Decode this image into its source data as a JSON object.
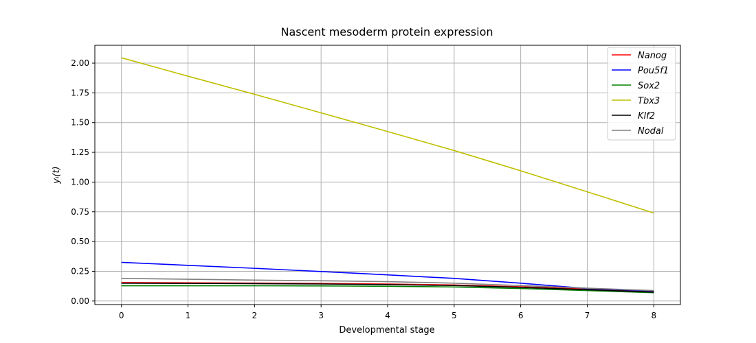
{
  "chart_data": {
    "type": "line",
    "title": "Nascent mesoderm protein expression",
    "xlabel": "Developmental stage",
    "ylabel": "yᵢ(t)",
    "xlim": [
      -0.4,
      8.4
    ],
    "ylim": [
      -0.03,
      2.15
    ],
    "xticks": [
      0,
      1,
      2,
      3,
      4,
      5,
      6,
      7,
      8
    ],
    "yticks": [
      0.0,
      0.25,
      0.5,
      0.75,
      1.0,
      1.25,
      1.5,
      1.75,
      2.0
    ],
    "ytick_labels": [
      "0.00",
      "0.25",
      "0.50",
      "0.75",
      "1.00",
      "1.25",
      "1.50",
      "1.75",
      "2.00"
    ],
    "grid": true,
    "legend_position": "top-right",
    "x": [
      0,
      1,
      2,
      3,
      4,
      5,
      6,
      7,
      8
    ],
    "series": [
      {
        "name": "Nanog",
        "color": "#ff0000",
        "values": [
          0.155,
          0.153,
          0.151,
          0.148,
          0.143,
          0.135,
          0.12,
          0.1,
          0.08
        ]
      },
      {
        "name": "Pou5f1",
        "color": "#0000ff",
        "values": [
          0.325,
          0.3,
          0.275,
          0.248,
          0.22,
          0.19,
          0.15,
          0.105,
          0.085
        ]
      },
      {
        "name": "Sox2",
        "color": "#008000",
        "values": [
          0.128,
          0.128,
          0.128,
          0.127,
          0.124,
          0.118,
          0.105,
          0.088,
          0.07
        ]
      },
      {
        "name": "Tbx3",
        "color": "#bfbf00",
        "values": [
          2.045,
          1.89,
          1.738,
          1.582,
          1.425,
          1.265,
          1.095,
          0.918,
          0.74
        ]
      },
      {
        "name": "Klf2",
        "color": "#000000",
        "values": [
          0.15,
          0.148,
          0.146,
          0.143,
          0.138,
          0.13,
          0.115,
          0.095,
          0.075
        ]
      },
      {
        "name": "Nodal",
        "color": "#808080",
        "values": [
          0.19,
          0.183,
          0.176,
          0.17,
          0.163,
          0.15,
          0.13,
          0.108,
          0.088
        ]
      }
    ]
  }
}
